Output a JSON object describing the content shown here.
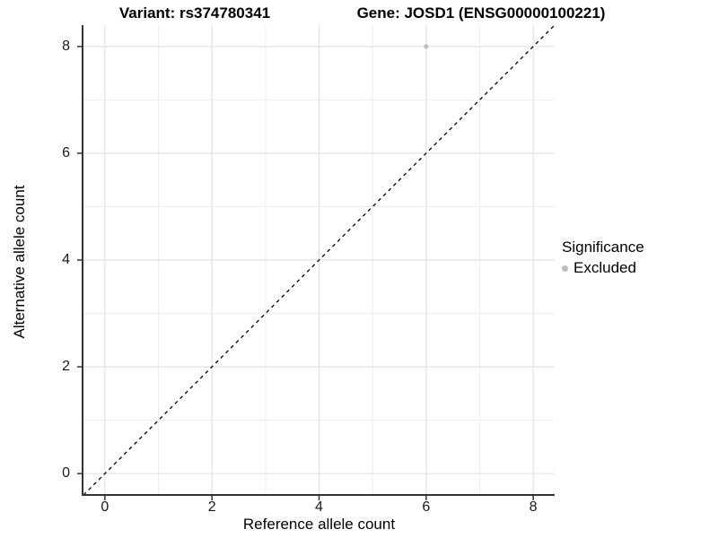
{
  "header": {
    "variant_title": "Variant: rs374780341",
    "gene_title": "Gene: JOSD1 (ENSG00000100221)"
  },
  "chart_data": {
    "type": "scatter",
    "title": "Variant: rs374780341    Gene: JOSD1 (ENSG00000100221)",
    "xlabel": "Reference allele count",
    "ylabel": "Alternative allele count",
    "xlim": [
      -0.4,
      8.4
    ],
    "ylim": [
      -0.4,
      8.4
    ],
    "x_ticks": [
      0,
      2,
      4,
      6,
      8
    ],
    "y_ticks": [
      0,
      2,
      4,
      6,
      8
    ],
    "x_minor_gridlines": [
      1,
      3,
      5,
      7
    ],
    "y_minor_gridlines": [
      1,
      3,
      5,
      7
    ],
    "grid": true,
    "identity_line": {
      "style": "dashed",
      "from": [
        -0.4,
        -0.4
      ],
      "to": [
        8.4,
        8.4
      ],
      "color": "#000000"
    },
    "series": [
      {
        "name": "Excluded",
        "color": "#bebebe",
        "points": [
          {
            "x": 6,
            "y": 8
          }
        ]
      }
    ],
    "legend": {
      "title": "Significance",
      "position": "right",
      "entries": [
        {
          "label": "Excluded",
          "color": "#bebebe"
        }
      ]
    }
  },
  "colors": {
    "background": "#ffffff",
    "grid_major": "#e2e2e2",
    "grid_minor": "#eeeeee",
    "axis_line": "#333333",
    "tick_text": "#1a1a1a",
    "point": "#bebebe"
  }
}
